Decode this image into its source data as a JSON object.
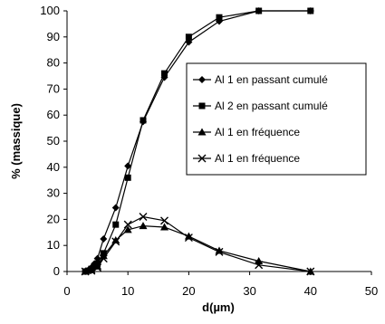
{
  "chart_data": {
    "type": "line",
    "title": "",
    "xlabel": "d(µm)",
    "ylabel": "% (massique)",
    "xlim": [
      0,
      50
    ],
    "ylim": [
      0,
      100
    ],
    "xticks": [
      "0",
      "10",
      "20",
      "30",
      "40",
      "50"
    ],
    "yticks": [
      "0",
      "10",
      "20",
      "30",
      "40",
      "50",
      "60",
      "70",
      "80",
      "90",
      "100"
    ],
    "grid": false,
    "legend_position": "right",
    "series": [
      {
        "name": "Al 1 en passant cumulé",
        "marker": "diamond",
        "x": [
          3,
          3.5,
          4,
          4.5,
          5,
          6,
          8,
          10,
          12.5,
          16,
          20,
          25,
          31.5,
          40
        ],
        "y": [
          0,
          0.5,
          1.5,
          3,
          5,
          12.5,
          24.5,
          40.5,
          57.5,
          74.5,
          88,
          96,
          100,
          100
        ]
      },
      {
        "name": "Al 2 en  passant cumulé",
        "marker": "square",
        "x": [
          3,
          3.5,
          4,
          4.5,
          5,
          6,
          8,
          10,
          12.5,
          16,
          20,
          25,
          31.5,
          40
        ],
        "y": [
          0,
          0.3,
          1,
          2,
          3,
          7,
          18,
          36,
          58,
          76,
          90,
          97.5,
          100,
          100
        ]
      },
      {
        "name": "Al 1 en fréquence",
        "marker": "triangle",
        "x": [
          3,
          4,
          5,
          6,
          8,
          10,
          12.5,
          16,
          20,
          25,
          31.5,
          40
        ],
        "y": [
          0,
          0.5,
          2,
          6,
          12,
          16,
          17.5,
          17,
          13.5,
          8,
          4,
          0
        ]
      },
      {
        "name": "Al 1 en fréquence",
        "marker": "x",
        "x": [
          3,
          4,
          5,
          6,
          8,
          10,
          12.5,
          16,
          20,
          25,
          31.5,
          40
        ],
        "y": [
          0,
          0.3,
          1.5,
          5,
          11.5,
          18,
          21,
          19.5,
          13,
          7.5,
          2.5,
          0
        ]
      }
    ]
  }
}
